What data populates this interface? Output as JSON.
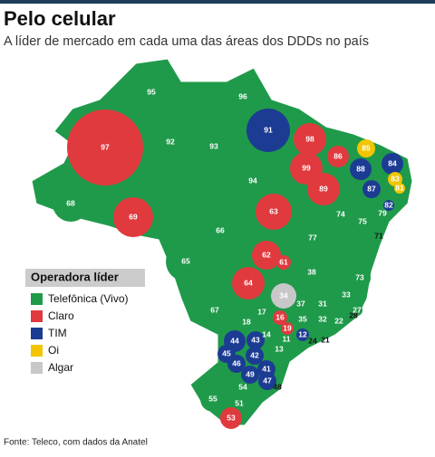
{
  "header": {
    "title": "Pelo celular",
    "subtitle": "A líder de mercado em cada uma das áreas dos DDDs no país"
  },
  "legend": {
    "title": "Operadora líder",
    "items": [
      {
        "label": "Telefônica (Vivo)",
        "color": "#1f9a4a",
        "ddd": [
          "95",
          "96",
          "92",
          "93",
          "94",
          "68",
          "79",
          "74",
          "75",
          "66",
          "77",
          "65",
          "38",
          "73",
          "37",
          "31",
          "33",
          "27",
          "67",
          "28",
          "17",
          "18",
          "35",
          "32",
          "22",
          "24",
          "14",
          "11",
          "13",
          "54",
          "55",
          "51"
        ]
      },
      {
        "label": "Claro",
        "color": "#e03a3e",
        "ddd": [
          "97",
          "98",
          "86",
          "99",
          "89",
          "69",
          "63",
          "62",
          "61",
          "64",
          "16",
          "19",
          "21",
          "53"
        ]
      },
      {
        "label": "TIM",
        "color": "#1c3c93",
        "ddd": [
          "91",
          "88",
          "84",
          "87",
          "82",
          "12",
          "44",
          "43",
          "45",
          "42",
          "46",
          "41",
          "49",
          "47",
          "48"
        ]
      },
      {
        "label": "Oi",
        "color": "#f2c500",
        "ddd": [
          "85",
          "83",
          "81",
          "71"
        ]
      },
      {
        "label": "Algar",
        "color": "#c8c8c8",
        "ddd": [
          "34"
        ]
      }
    ]
  },
  "source": "Fonte: Teleco, com dados da Anatel"
}
